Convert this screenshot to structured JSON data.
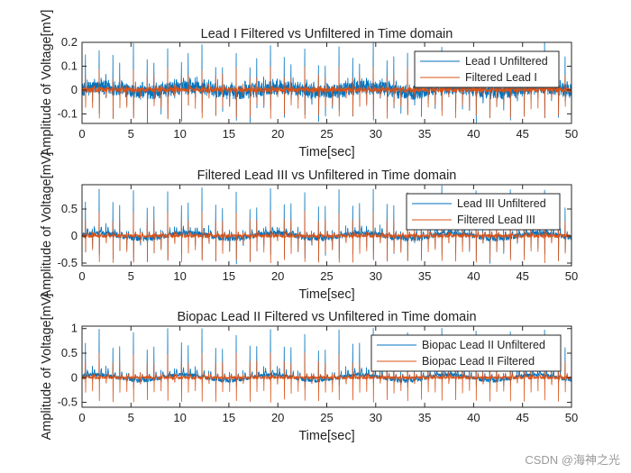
{
  "watermark": "CSDN @海神之光",
  "colors": {
    "unfiltered": "#0072BD",
    "filtered": "#D95319"
  },
  "chart_data": [
    {
      "type": "line",
      "title": "Lead I Filtered vs Unfiltered in Time domain",
      "xlabel": "Time[sec]",
      "ylabel": "Amplitude of Voltage[mV]",
      "xlim": [
        0,
        50
      ],
      "ylim": [
        -0.14,
        0.2
      ],
      "xticks": [
        0,
        5,
        10,
        15,
        20,
        25,
        30,
        35,
        40,
        45,
        50
      ],
      "yticks": [
        -0.1,
        0,
        0.1,
        0.2
      ],
      "ytick_labels": [
        "-0.1",
        "0",
        "0.1",
        "0.2"
      ],
      "beat_period_sec": 0.7,
      "series": [
        {
          "name": "Lead I Unfiltered",
          "color": "#0072BD",
          "r_peak": 0.18,
          "trough": -0.12,
          "noise": 0.03,
          "baseline_wander": 0.01
        },
        {
          "name": "Filtered Lead I",
          "color": "#D95319",
          "r_peak": 0.09,
          "trough": -0.12,
          "noise": 0.01,
          "baseline_wander": 0.0
        }
      ]
    },
    {
      "type": "line",
      "title": "Filtered Lead III vs Unfiltered in Time domain",
      "xlabel": "Time[sec]",
      "ylabel": "Amplitude of Voltage[mV]",
      "xlim": [
        0,
        50
      ],
      "ylim": [
        -0.55,
        0.95
      ],
      "xticks": [
        0,
        5,
        10,
        15,
        20,
        25,
        30,
        35,
        40,
        45,
        50
      ],
      "yticks": [
        -0.5,
        0,
        0.5
      ],
      "ytick_labels": [
        "-0.5",
        "0",
        "0.5"
      ],
      "beat_period_sec": 0.7,
      "series": [
        {
          "name": "Lead III Unfiltered",
          "color": "#0072BD",
          "r_peak": 0.85,
          "trough": -0.45,
          "noise": 0.05,
          "baseline_wander": 0.05
        },
        {
          "name": "Filtered Lead III",
          "color": "#D95319",
          "r_peak": 0.45,
          "trough": -0.5,
          "noise": 0.03,
          "baseline_wander": 0.0
        }
      ]
    },
    {
      "type": "line",
      "title": "Biopac Lead II Filtered vs Unfiltered in Time domain",
      "xlabel": "Time[sec]",
      "ylabel": "Amplitude of Voltage[mV]",
      "xlim": [
        0,
        50
      ],
      "ylim": [
        -0.6,
        1.05
      ],
      "xticks": [
        0,
        5,
        10,
        15,
        20,
        25,
        30,
        35,
        40,
        45,
        50
      ],
      "yticks": [
        -0.5,
        0,
        0.5,
        1
      ],
      "ytick_labels": [
        "-0.5",
        "0",
        "0.5",
        "1"
      ],
      "beat_period_sec": 0.7,
      "series": [
        {
          "name": "Biopac Lead II Unfiltered",
          "color": "#0072BD",
          "r_peak": 0.95,
          "trough": -0.15,
          "noise": 0.04,
          "baseline_wander": 0.06
        },
        {
          "name": "Biopac Lead II Filtered",
          "color": "#D95319",
          "r_peak": 0.5,
          "trough": -0.5,
          "noise": 0.03,
          "baseline_wander": 0.0
        }
      ]
    }
  ]
}
